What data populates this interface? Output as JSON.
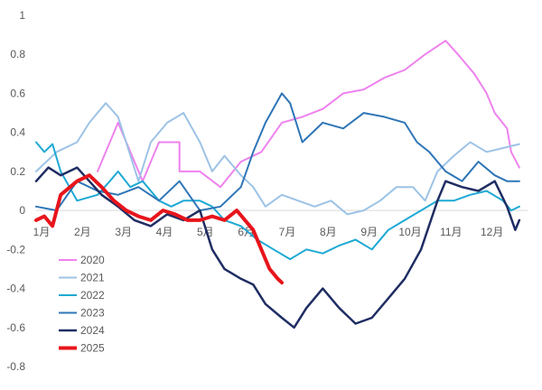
{
  "chart_data": {
    "type": "line",
    "title": "",
    "xlabel": "",
    "ylabel": "",
    "ylim": [
      -0.8,
      1.0
    ],
    "y_ticks": [
      "1",
      "0.8",
      "0.6",
      "0.4",
      "0.2",
      "0",
      "-0.2",
      "-0.4",
      "-0.6",
      "-0.8"
    ],
    "x_ticks": [
      "1月",
      "2月",
      "3月",
      "4月",
      "5月",
      "6月",
      "7月",
      "8月",
      "9月",
      "10月",
      "11月",
      "12月"
    ],
    "xlim": [
      1,
      13
    ],
    "grid": false,
    "legend_position": "bottom-left",
    "series": [
      {
        "name": "2020",
        "color": "#ee82ee",
        "width": 2,
        "points": [
          [
            2.5,
            0.2
          ],
          [
            3.0,
            0.45
          ],
          [
            3.3,
            0.3
          ],
          [
            3.6,
            0.15
          ],
          [
            4.0,
            0.35
          ],
          [
            4.5,
            0.35
          ],
          [
            4.5,
            0.2
          ],
          [
            5.0,
            0.2
          ],
          [
            5.5,
            0.12
          ],
          [
            6.0,
            0.25
          ],
          [
            6.5,
            0.3
          ],
          [
            7.0,
            0.45
          ],
          [
            7.5,
            0.48
          ],
          [
            8.0,
            0.52
          ],
          [
            8.5,
            0.6
          ],
          [
            9.0,
            0.62
          ],
          [
            9.5,
            0.68
          ],
          [
            10.0,
            0.72
          ],
          [
            10.5,
            0.8
          ],
          [
            11.0,
            0.87
          ],
          [
            11.3,
            0.8
          ],
          [
            11.7,
            0.7
          ],
          [
            12.0,
            0.6
          ],
          [
            12.2,
            0.5
          ],
          [
            12.5,
            0.42
          ],
          [
            12.6,
            0.3
          ],
          [
            12.8,
            0.22
          ]
        ]
      },
      {
        "name": "2021",
        "color": "#9dc3e6",
        "width": 2,
        "points": [
          [
            1.0,
            0.2
          ],
          [
            1.5,
            0.3
          ],
          [
            2.0,
            0.35
          ],
          [
            2.3,
            0.45
          ],
          [
            2.7,
            0.55
          ],
          [
            3.0,
            0.48
          ],
          [
            3.5,
            0.15
          ],
          [
            3.8,
            0.35
          ],
          [
            4.2,
            0.45
          ],
          [
            4.6,
            0.5
          ],
          [
            5.0,
            0.35
          ],
          [
            5.3,
            0.2
          ],
          [
            5.6,
            0.28
          ],
          [
            6.0,
            0.18
          ],
          [
            6.3,
            0.12
          ],
          [
            6.6,
            0.02
          ],
          [
            7.0,
            0.08
          ],
          [
            7.4,
            0.05
          ],
          [
            7.8,
            0.02
          ],
          [
            8.2,
            0.05
          ],
          [
            8.6,
            -0.02
          ],
          [
            9.0,
            0.0
          ],
          [
            9.4,
            0.05
          ],
          [
            9.8,
            0.12
          ],
          [
            10.2,
            0.12
          ],
          [
            10.5,
            0.05
          ],
          [
            10.8,
            0.2
          ],
          [
            11.2,
            0.28
          ],
          [
            11.6,
            0.35
          ],
          [
            12.0,
            0.3
          ],
          [
            12.4,
            0.32
          ],
          [
            12.8,
            0.34
          ]
        ]
      },
      {
        "name": "2022",
        "color": "#1fa9d4",
        "width": 2,
        "points": [
          [
            1.0,
            0.35
          ],
          [
            1.2,
            0.3
          ],
          [
            1.4,
            0.34
          ],
          [
            1.6,
            0.2
          ],
          [
            2.0,
            0.05
          ],
          [
            2.5,
            0.08
          ],
          [
            2.8,
            0.15
          ],
          [
            3.0,
            0.2
          ],
          [
            3.3,
            0.12
          ],
          [
            3.6,
            0.15
          ],
          [
            4.0,
            0.05
          ],
          [
            4.3,
            0.02
          ],
          [
            4.6,
            0.05
          ],
          [
            5.0,
            0.05
          ],
          [
            5.3,
            0.02
          ],
          [
            5.6,
            -0.05
          ],
          [
            6.0,
            -0.08
          ],
          [
            6.4,
            -0.15
          ],
          [
            6.8,
            -0.2
          ],
          [
            7.2,
            -0.25
          ],
          [
            7.6,
            -0.2
          ],
          [
            8.0,
            -0.22
          ],
          [
            8.4,
            -0.18
          ],
          [
            8.8,
            -0.15
          ],
          [
            9.2,
            -0.2
          ],
          [
            9.6,
            -0.1
          ],
          [
            10.0,
            -0.05
          ],
          [
            10.4,
            0.0
          ],
          [
            10.8,
            0.05
          ],
          [
            11.2,
            0.05
          ],
          [
            11.6,
            0.08
          ],
          [
            12.0,
            0.1
          ],
          [
            12.4,
            0.05
          ],
          [
            12.6,
            0.0
          ],
          [
            12.8,
            0.02
          ]
        ]
      },
      {
        "name": "2023",
        "color": "#2e75b6",
        "width": 2,
        "points": [
          [
            1.0,
            0.02
          ],
          [
            1.5,
            0.0
          ],
          [
            2.0,
            0.15
          ],
          [
            2.5,
            0.1
          ],
          [
            3.0,
            0.08
          ],
          [
            3.5,
            0.12
          ],
          [
            4.0,
            0.05
          ],
          [
            4.5,
            0.15
          ],
          [
            5.0,
            0.0
          ],
          [
            5.5,
            0.02
          ],
          [
            6.0,
            0.12
          ],
          [
            6.3,
            0.3
          ],
          [
            6.6,
            0.45
          ],
          [
            7.0,
            0.6
          ],
          [
            7.2,
            0.55
          ],
          [
            7.5,
            0.35
          ],
          [
            8.0,
            0.45
          ],
          [
            8.5,
            0.42
          ],
          [
            9.0,
            0.5
          ],
          [
            9.5,
            0.48
          ],
          [
            10.0,
            0.45
          ],
          [
            10.3,
            0.35
          ],
          [
            10.6,
            0.3
          ],
          [
            11.0,
            0.2
          ],
          [
            11.4,
            0.15
          ],
          [
            11.8,
            0.25
          ],
          [
            12.2,
            0.18
          ],
          [
            12.5,
            0.15
          ],
          [
            12.8,
            0.15
          ]
        ]
      },
      {
        "name": "2024",
        "color": "#1f2d63",
        "width": 2.5,
        "points": [
          [
            1.0,
            0.15
          ],
          [
            1.3,
            0.22
          ],
          [
            1.6,
            0.18
          ],
          [
            2.0,
            0.22
          ],
          [
            2.3,
            0.15
          ],
          [
            2.6,
            0.08
          ],
          [
            3.0,
            0.02
          ],
          [
            3.4,
            -0.05
          ],
          [
            3.8,
            -0.08
          ],
          [
            4.2,
            -0.02
          ],
          [
            4.6,
            -0.05
          ],
          [
            5.0,
            0.0
          ],
          [
            5.3,
            -0.2
          ],
          [
            5.6,
            -0.3
          ],
          [
            6.0,
            -0.35
          ],
          [
            6.3,
            -0.38
          ],
          [
            6.6,
            -0.48
          ],
          [
            7.0,
            -0.55
          ],
          [
            7.3,
            -0.6
          ],
          [
            7.6,
            -0.5
          ],
          [
            8.0,
            -0.4
          ],
          [
            8.4,
            -0.5
          ],
          [
            8.8,
            -0.58
          ],
          [
            9.2,
            -0.55
          ],
          [
            9.6,
            -0.45
          ],
          [
            10.0,
            -0.35
          ],
          [
            10.4,
            -0.2
          ],
          [
            10.8,
            0.05
          ],
          [
            11.0,
            0.15
          ],
          [
            11.4,
            0.12
          ],
          [
            11.8,
            0.1
          ],
          [
            12.2,
            0.15
          ],
          [
            12.5,
            0.02
          ],
          [
            12.7,
            -0.1
          ],
          [
            12.8,
            -0.05
          ]
        ]
      },
      {
        "name": "2025",
        "color": "#e8141b",
        "width": 4,
        "points": [
          [
            1.0,
            -0.05
          ],
          [
            1.2,
            -0.03
          ],
          [
            1.4,
            -0.08
          ],
          [
            1.6,
            0.08
          ],
          [
            2.0,
            0.15
          ],
          [
            2.3,
            0.18
          ],
          [
            2.6,
            0.12
          ],
          [
            2.9,
            0.05
          ],
          [
            3.2,
            0.0
          ],
          [
            3.5,
            -0.03
          ],
          [
            3.8,
            -0.05
          ],
          [
            4.1,
            0.0
          ],
          [
            4.4,
            -0.02
          ],
          [
            4.7,
            -0.05
          ],
          [
            5.0,
            -0.05
          ],
          [
            5.3,
            -0.03
          ],
          [
            5.6,
            -0.05
          ],
          [
            5.9,
            0.0
          ],
          [
            6.1,
            -0.05
          ],
          [
            6.3,
            -0.1
          ],
          [
            6.5,
            -0.2
          ],
          [
            6.7,
            -0.3
          ],
          [
            6.9,
            -0.35
          ],
          [
            7.0,
            -0.37
          ]
        ]
      }
    ]
  }
}
